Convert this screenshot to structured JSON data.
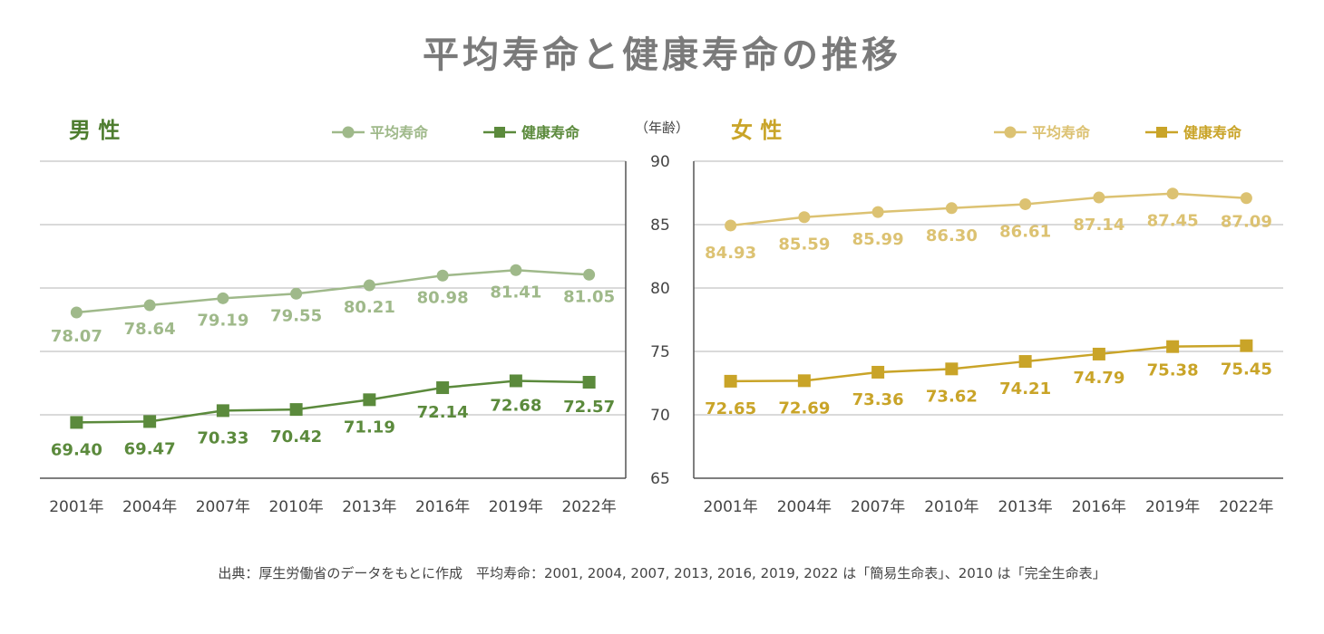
{
  "title": "平均寿命と健康寿命の推移",
  "unit_label": "（年齢）",
  "source_note": "出典：厚生労働省のデータをもとに作成　平均寿命：2001, 2004, 2007, 2013, 2016, 2019, 2022 は「簡易生命表」、2010 は「完全生命表」",
  "chart_data": [
    {
      "type": "line",
      "panel_title": "男 性",
      "categories": [
        "2001年",
        "2004年",
        "2007年",
        "2010年",
        "2013年",
        "2016年",
        "2019年",
        "2022年"
      ],
      "ylim": [
        65,
        90
      ],
      "yticks": [
        65,
        70,
        75,
        80,
        85,
        90
      ],
      "grid": true,
      "legend_position": "top-right",
      "series": [
        {
          "name": "平均寿命",
          "marker": "circle",
          "color": "#9fb98a",
          "values": [
            78.07,
            78.64,
            79.19,
            79.55,
            80.21,
            80.98,
            81.41,
            81.05
          ],
          "labels": [
            "78.07",
            "78.64",
            "79.19",
            "79.55",
            "80.21",
            "80.98",
            "81.41",
            "81.05"
          ]
        },
        {
          "name": "健康寿命",
          "marker": "square",
          "color": "#5b8a3c",
          "values": [
            69.4,
            69.47,
            70.33,
            70.42,
            71.19,
            72.14,
            72.68,
            72.57
          ],
          "labels": [
            "69.40",
            "69.47",
            "70.33",
            "70.42",
            "71.19",
            "72.14",
            "72.68",
            "72.57"
          ]
        }
      ]
    },
    {
      "type": "line",
      "panel_title": "女 性",
      "categories": [
        "2001年",
        "2004年",
        "2007年",
        "2010年",
        "2013年",
        "2016年",
        "2019年",
        "2022年"
      ],
      "ylim": [
        65,
        90
      ],
      "yticks": [
        65,
        70,
        75,
        80,
        85,
        90
      ],
      "grid": true,
      "legend_position": "top-right",
      "series": [
        {
          "name": "平均寿命",
          "marker": "circle",
          "color": "#dcc272",
          "values": [
            84.93,
            85.59,
            85.99,
            86.3,
            86.61,
            87.14,
            87.45,
            87.09
          ],
          "labels": [
            "84.93",
            "85.59",
            "85.99",
            "86.30",
            "86.61",
            "87.14",
            "87.45",
            "87.09"
          ]
        },
        {
          "name": "健康寿命",
          "marker": "square",
          "color": "#c9a428",
          "values": [
            72.65,
            72.69,
            73.36,
            73.62,
            74.21,
            74.79,
            75.38,
            75.45
          ],
          "labels": [
            "72.65",
            "72.69",
            "73.36",
            "73.62",
            "74.21",
            "74.79",
            "75.38",
            "75.45"
          ]
        }
      ]
    }
  ],
  "colors": {
    "title": "#7a7a7a",
    "male_title": "#4e7d2f",
    "female_title": "#c9a428",
    "grid": "#b5b5b5",
    "axis": "#555555"
  }
}
